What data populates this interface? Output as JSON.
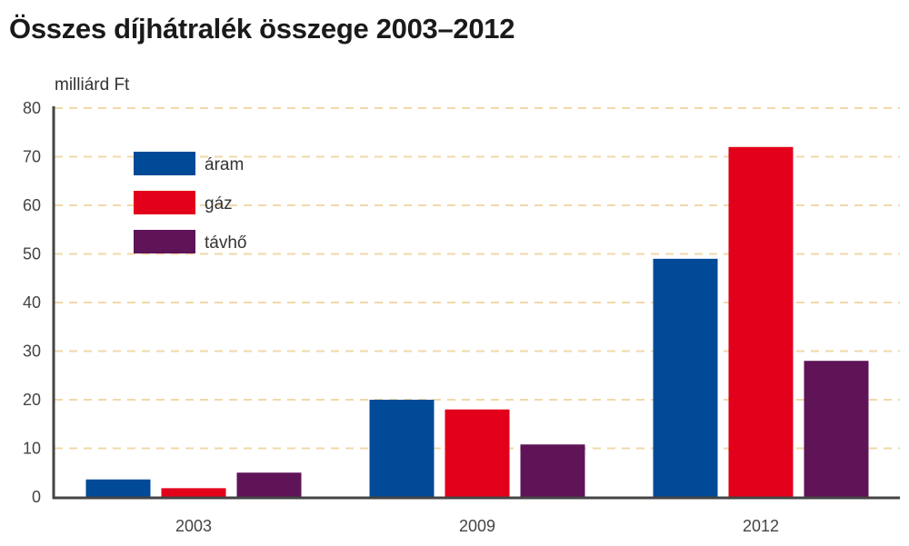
{
  "chart_data": {
    "type": "bar",
    "title": "Összes díjhátralék összege 2003–2012",
    "ylabel": "milliárd Ft",
    "xlabel": "",
    "categories": [
      "2003",
      "2009",
      "2012"
    ],
    "ylim": [
      0,
      80
    ],
    "yticks": [
      0,
      10,
      20,
      30,
      40,
      50,
      60,
      70,
      80
    ],
    "grid": true,
    "legend_position": "top-left",
    "series": [
      {
        "name": "áram",
        "color": "#004a98",
        "values": [
          3.6,
          20,
          49
        ]
      },
      {
        "name": "gáz",
        "color": "#e2001a",
        "values": [
          1.8,
          18,
          72
        ]
      },
      {
        "name": "távhő",
        "color": "#5f1458",
        "values": [
          5,
          10.8,
          28
        ]
      }
    ]
  }
}
